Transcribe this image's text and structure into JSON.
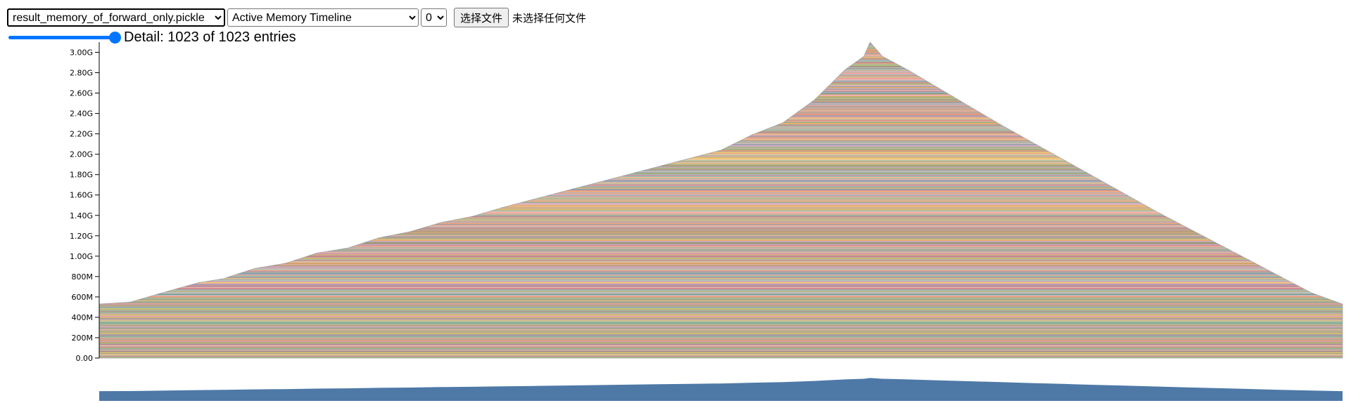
{
  "toolbar": {
    "file_select": {
      "selected": "result_memory_of_forward_only.pickle"
    },
    "view_select": {
      "selected": "Active Memory Timeline"
    },
    "device_select": {
      "selected": "0"
    },
    "choose_file_button": "选择文件",
    "no_file_text": "未选择任何文件"
  },
  "detail": {
    "text": "Detail: 1023 of 1023 entries",
    "shown": 1023,
    "total": 1023,
    "slider_fraction": 1.0
  },
  "colors": {
    "slider_accent": "#0075ff",
    "overview_fill": "#4e79a7",
    "palette": [
      "#4e79a7",
      "#f28e2c",
      "#e15759",
      "#76b7b2",
      "#59a14f",
      "#edc949",
      "#af7aa1",
      "#ff9da7",
      "#9c755f",
      "#bab0ab"
    ]
  },
  "chart_data": {
    "type": "area",
    "title": "",
    "xlabel": "",
    "ylabel": "",
    "stacked": true,
    "series_count": 1023,
    "ylim": [
      0,
      3.1
    ],
    "y_unit": "GB",
    "yticks": [
      {
        "value": 0.0,
        "label": "0.00"
      },
      {
        "value": 0.2,
        "label": "200M"
      },
      {
        "value": 0.4,
        "label": "400M"
      },
      {
        "value": 0.6,
        "label": "600M"
      },
      {
        "value": 0.8,
        "label": "800M"
      },
      {
        "value": 1.0,
        "label": "1.00G"
      },
      {
        "value": 1.2,
        "label": "1.20G"
      },
      {
        "value": 1.4,
        "label": "1.40G"
      },
      {
        "value": 1.6,
        "label": "1.60G"
      },
      {
        "value": 1.8,
        "label": "1.80G"
      },
      {
        "value": 2.0,
        "label": "2.00G"
      },
      {
        "value": 2.2,
        "label": "2.20G"
      },
      {
        "value": 2.4,
        "label": "2.40G"
      },
      {
        "value": 2.6,
        "label": "2.60G"
      },
      {
        "value": 2.8,
        "label": "2.80G"
      },
      {
        "value": 3.0,
        "label": "3.00G"
      }
    ],
    "xlim": [
      0,
      100
    ],
    "base_allocation": 0.53,
    "peak": {
      "x": 62,
      "y": 3.1
    },
    "total_memory": [
      {
        "x": 0,
        "y": 0.53
      },
      {
        "x": 2.5,
        "y": 0.55
      },
      {
        "x": 4.5,
        "y": 0.62
      },
      {
        "x": 6.5,
        "y": 0.69
      },
      {
        "x": 8,
        "y": 0.74
      },
      {
        "x": 10,
        "y": 0.78
      },
      {
        "x": 12.5,
        "y": 0.88
      },
      {
        "x": 15,
        "y": 0.93
      },
      {
        "x": 17.5,
        "y": 1.03
      },
      {
        "x": 20,
        "y": 1.08
      },
      {
        "x": 22.5,
        "y": 1.18
      },
      {
        "x": 25,
        "y": 1.24
      },
      {
        "x": 27.5,
        "y": 1.33
      },
      {
        "x": 30,
        "y": 1.39
      },
      {
        "x": 32.5,
        "y": 1.48
      },
      {
        "x": 35,
        "y": 1.56
      },
      {
        "x": 37.5,
        "y": 1.64
      },
      {
        "x": 40,
        "y": 1.72
      },
      {
        "x": 42.5,
        "y": 1.8
      },
      {
        "x": 45,
        "y": 1.88
      },
      {
        "x": 47.5,
        "y": 1.96
      },
      {
        "x": 50,
        "y": 2.04
      },
      {
        "x": 52.5,
        "y": 2.19
      },
      {
        "x": 55,
        "y": 2.31
      },
      {
        "x": 57.5,
        "y": 2.53
      },
      {
        "x": 60,
        "y": 2.83
      },
      {
        "x": 61.5,
        "y": 2.96
      },
      {
        "x": 62,
        "y": 3.1
      },
      {
        "x": 63,
        "y": 2.96
      },
      {
        "x": 65,
        "y": 2.83
      },
      {
        "x": 67.5,
        "y": 2.65
      },
      {
        "x": 70,
        "y": 2.47
      },
      {
        "x": 72.5,
        "y": 2.29
      },
      {
        "x": 75,
        "y": 2.12
      },
      {
        "x": 77.5,
        "y": 1.95
      },
      {
        "x": 80,
        "y": 1.78
      },
      {
        "x": 82.5,
        "y": 1.61
      },
      {
        "x": 85,
        "y": 1.44
      },
      {
        "x": 87.5,
        "y": 1.28
      },
      {
        "x": 90,
        "y": 1.12
      },
      {
        "x": 92.5,
        "y": 0.96
      },
      {
        "x": 95,
        "y": 0.8
      },
      {
        "x": 97.5,
        "y": 0.64
      },
      {
        "x": 100,
        "y": 0.53
      }
    ],
    "overview": {
      "type": "area",
      "description_of": "total memory over time (minimap)"
    }
  }
}
